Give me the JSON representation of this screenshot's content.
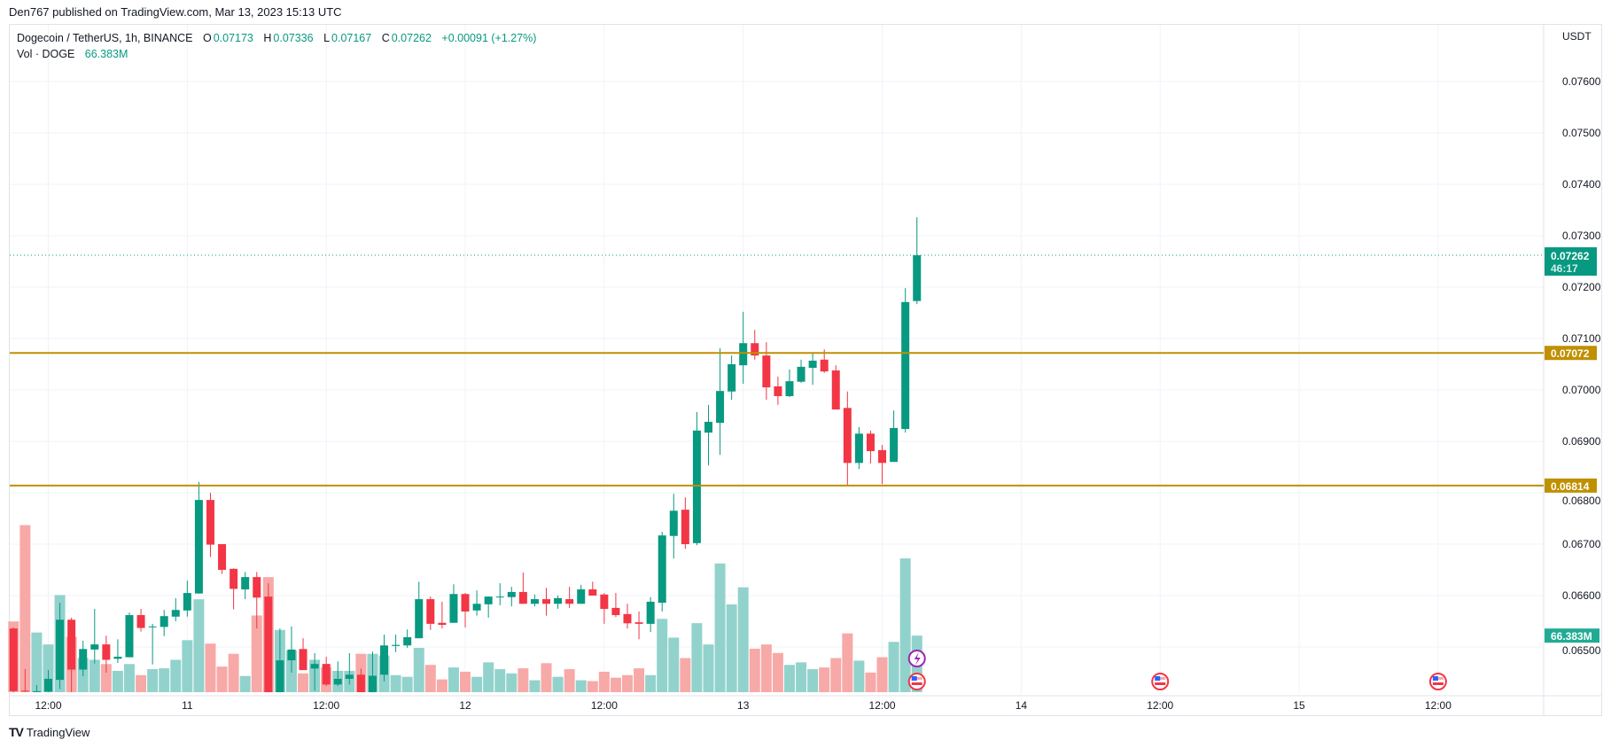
{
  "published": "Den767 published on TradingView.com, Mar 13, 2023 15:13 UTC",
  "legend": {
    "symbol": "Dogecoin / TetherUS, 1h, BINANCE",
    "o_label": "O",
    "o": "0.07173",
    "h_label": "H",
    "h": "0.07336",
    "l_label": "L",
    "l": "0.07167",
    "c_label": "C",
    "c": "0.07262",
    "change": "+0.00091 (+1.27%)",
    "vol_label": "Vol · DOGE",
    "vol": "66.383M"
  },
  "footer": {
    "logo": "TV",
    "brand": "TradingView"
  },
  "colors": {
    "up": "#089981",
    "down": "#f23645",
    "vol_up": "#92d2cc",
    "vol_down": "#f7a9a7",
    "level": "#bf9000",
    "grid": "#f0f3fa"
  },
  "icons": [
    "lightning-icon",
    "us-flag-icon"
  ],
  "chart_data": {
    "type": "candlestick",
    "title": "Dogecoin / TetherUS, 1h, BINANCE",
    "currency": "USDT",
    "interval": "1h",
    "start": "2023-03-10 09:00",
    "ylim": [
      0.0641,
      0.077
    ],
    "y_ticks": [
      "0.07600",
      "0.07500",
      "0.07400",
      "0.07300",
      "0.07200",
      "0.07100",
      "0.07000",
      "0.06900",
      "0.06800",
      "0.06700",
      "0.06600",
      "0.06500"
    ],
    "x_ticks": [
      "12:00",
      "11",
      "12:00",
      "12",
      "12:00",
      "13",
      "12:00",
      "14",
      "12:00",
      "15",
      "12:00"
    ],
    "grid": true,
    "last_price": {
      "value": "0.07262",
      "countdown": "46:17"
    },
    "levels": [
      {
        "value": "0.07072"
      },
      {
        "value": "0.06814"
      }
    ],
    "volume_label": "66.383M",
    "volume_unit": "M",
    "ohlcv": [
      [
        0.06536,
        0.06538,
        0.06412,
        0.06414,
        83
      ],
      [
        0.06415,
        0.06457,
        0.06412,
        0.06414,
        196
      ],
      [
        0.06413,
        0.06426,
        0.06412,
        0.06414,
        70
      ],
      [
        0.06413,
        0.06455,
        0.06412,
        0.06438,
        56
      ],
      [
        0.06436,
        0.06586,
        0.06418,
        0.06553,
        114
      ],
      [
        0.06553,
        0.06557,
        0.06412,
        0.06456,
        65
      ],
      [
        0.06456,
        0.06512,
        0.06443,
        0.06496,
        40
      ],
      [
        0.06495,
        0.06574,
        0.06468,
        0.06505,
        38
      ],
      [
        0.06505,
        0.06522,
        0.0645,
        0.06475,
        33
      ],
      [
        0.06477,
        0.06515,
        0.06469,
        0.06481,
        25
      ],
      [
        0.0648,
        0.06567,
        0.0648,
        0.06562,
        33
      ],
      [
        0.06562,
        0.06574,
        0.0653,
        0.06537,
        20
      ],
      [
        0.06539,
        0.06545,
        0.06466,
        0.0654,
        27
      ],
      [
        0.06539,
        0.06572,
        0.06521,
        0.0656,
        28
      ],
      [
        0.06559,
        0.06595,
        0.0655,
        0.06572,
        38
      ],
      [
        0.06571,
        0.06629,
        0.06559,
        0.06605,
        61
      ],
      [
        0.06604,
        0.06821,
        0.06604,
        0.06786,
        109
      ],
      [
        0.06786,
        0.068,
        0.06675,
        0.06699,
        57
      ],
      [
        0.067,
        0.067,
        0.06642,
        0.0665,
        30
      ],
      [
        0.06652,
        0.06653,
        0.06573,
        0.06613,
        45
      ],
      [
        0.06612,
        0.06646,
        0.06593,
        0.06636,
        19
      ],
      [
        0.06636,
        0.06646,
        0.06536,
        0.06596,
        90
      ],
      [
        0.06598,
        0.06624,
        0.06412,
        0.06412,
        135
      ],
      [
        0.06412,
        0.06536,
        0.06412,
        0.06474,
        73
      ],
      [
        0.06474,
        0.0654,
        0.0645,
        0.06495,
        49
      ],
      [
        0.06496,
        0.06517,
        0.06455,
        0.06455,
        22
      ],
      [
        0.06458,
        0.06488,
        0.06415,
        0.06467,
        38
      ],
      [
        0.06467,
        0.06481,
        0.06424,
        0.06427,
        29
      ],
      [
        0.06427,
        0.06472,
        0.06424,
        0.06438,
        25
      ],
      [
        0.06438,
        0.06488,
        0.06427,
        0.06446,
        25
      ],
      [
        0.06446,
        0.06458,
        0.06412,
        0.06412,
        45
      ],
      [
        0.06412,
        0.06491,
        0.06412,
        0.06444,
        45
      ],
      [
        0.06446,
        0.06524,
        0.06433,
        0.06503,
        43
      ],
      [
        0.06502,
        0.06524,
        0.0649,
        0.06504,
        20
      ],
      [
        0.06503,
        0.06534,
        0.06498,
        0.06519,
        18
      ],
      [
        0.06517,
        0.06627,
        0.06517,
        0.06593,
        52
      ],
      [
        0.06593,
        0.06598,
        0.06533,
        0.06545,
        32
      ],
      [
        0.06547,
        0.06588,
        0.06536,
        0.06543,
        15
      ],
      [
        0.06547,
        0.06622,
        0.06547,
        0.06603,
        29
      ],
      [
        0.06603,
        0.06605,
        0.06538,
        0.06569,
        24
      ],
      [
        0.06571,
        0.0661,
        0.06561,
        0.06584,
        18
      ],
      [
        0.06583,
        0.06598,
        0.06557,
        0.06598,
        35
      ],
      [
        0.06597,
        0.06624,
        0.06581,
        0.06598,
        27
      ],
      [
        0.06597,
        0.06617,
        0.06579,
        0.06607,
        22
      ],
      [
        0.06607,
        0.06645,
        0.06584,
        0.06584,
        28
      ],
      [
        0.06584,
        0.06602,
        0.06579,
        0.06593,
        14
      ],
      [
        0.06593,
        0.06615,
        0.06561,
        0.06584,
        34
      ],
      [
        0.06584,
        0.066,
        0.06574,
        0.06595,
        18
      ],
      [
        0.06593,
        0.06617,
        0.06576,
        0.06584,
        27
      ],
      [
        0.06584,
        0.06621,
        0.06584,
        0.06612,
        14
      ],
      [
        0.06612,
        0.06627,
        0.066,
        0.066,
        13
      ],
      [
        0.06602,
        0.06605,
        0.06545,
        0.06574,
        24
      ],
      [
        0.06576,
        0.06605,
        0.06558,
        0.06562,
        17
      ],
      [
        0.06564,
        0.06584,
        0.06536,
        0.06546,
        20
      ],
      [
        0.06548,
        0.06569,
        0.06515,
        0.06545,
        28
      ],
      [
        0.06545,
        0.06597,
        0.06529,
        0.06588,
        20
      ],
      [
        0.06586,
        0.06724,
        0.06569,
        0.06717,
        86
      ],
      [
        0.06716,
        0.06798,
        0.06672,
        0.06765,
        64
      ],
      [
        0.06767,
        0.06791,
        0.06691,
        0.067,
        40
      ],
      [
        0.06702,
        0.06957,
        0.06698,
        0.06921,
        81
      ],
      [
        0.06917,
        0.06971,
        0.06853,
        0.06938,
        56
      ],
      [
        0.06936,
        0.07081,
        0.06874,
        0.06998,
        151
      ],
      [
        0.06997,
        0.07067,
        0.06981,
        0.0705,
        103
      ],
      [
        0.07048,
        0.07152,
        0.07012,
        0.07091,
        123
      ],
      [
        0.07091,
        0.07117,
        0.07059,
        0.07067,
        51
      ],
      [
        0.07067,
        0.07093,
        0.06981,
        0.07005,
        56
      ],
      [
        0.07007,
        0.07026,
        0.06971,
        0.06988,
        46
      ],
      [
        0.06988,
        0.0704,
        0.06986,
        0.07017,
        32
      ],
      [
        0.07016,
        0.07059,
        0.07014,
        0.07045,
        35
      ],
      [
        0.07043,
        0.07071,
        0.0701,
        0.07057,
        27
      ],
      [
        0.07059,
        0.07079,
        0.07033,
        0.07036,
        29
      ],
      [
        0.07038,
        0.07048,
        0.06962,
        0.06962,
        40
      ],
      [
        0.06965,
        0.06997,
        0.06814,
        0.06858,
        69
      ],
      [
        0.06858,
        0.06928,
        0.06846,
        0.06915,
        37
      ],
      [
        0.06915,
        0.06921,
        0.06857,
        0.06881,
        23
      ],
      [
        0.06883,
        0.06893,
        0.06817,
        0.06858,
        41
      ],
      [
        0.0686,
        0.0696,
        0.0686,
        0.06926,
        59
      ],
      [
        0.06924,
        0.07198,
        0.06917,
        0.07171,
        157
      ],
      [
        0.07173,
        0.07336,
        0.07167,
        0.07262,
        66.383
      ]
    ]
  }
}
